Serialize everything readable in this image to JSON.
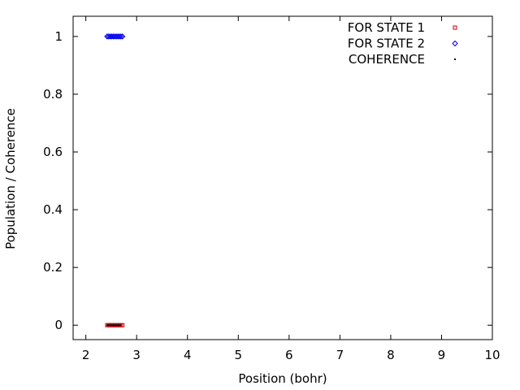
{
  "chart_data": {
    "type": "scatter",
    "xlabel": "Position (bohr)",
    "ylabel": "Population / Coherence",
    "xlim": [
      1.75,
      10
    ],
    "ylim": [
      -0.05,
      1.07
    ],
    "xticks": [
      2,
      3,
      4,
      5,
      6,
      7,
      8,
      9,
      10
    ],
    "yticks": [
      0,
      0.2,
      0.4,
      0.6,
      0.8,
      1
    ],
    "ytick_labels": [
      "0",
      "0.2",
      "0.4",
      "0.6",
      "0.8",
      "1"
    ],
    "legend_position": "top-right",
    "series": [
      {
        "name": "FOR STATE 1",
        "marker": "square",
        "color": "#cc0000",
        "points": [
          [
            2.42,
            0
          ],
          [
            2.45,
            0
          ],
          [
            2.48,
            0
          ],
          [
            2.51,
            0
          ],
          [
            2.54,
            0
          ],
          [
            2.57,
            0
          ],
          [
            2.6,
            0
          ],
          [
            2.63,
            0
          ],
          [
            2.66,
            0
          ],
          [
            2.69,
            0
          ],
          [
            2.72,
            0
          ]
        ]
      },
      {
        "name": "FOR STATE 2",
        "marker": "diamond",
        "color": "#0000ee",
        "points": [
          [
            2.42,
            1
          ],
          [
            2.45,
            1
          ],
          [
            2.48,
            1
          ],
          [
            2.51,
            1
          ],
          [
            2.54,
            1
          ],
          [
            2.57,
            1
          ],
          [
            2.6,
            1
          ],
          [
            2.63,
            1
          ],
          [
            2.66,
            1
          ],
          [
            2.69,
            1
          ],
          [
            2.72,
            1
          ]
        ]
      },
      {
        "name": "COHERENCE",
        "marker": "dot",
        "color": "#000000",
        "points": [
          [
            2.42,
            0
          ],
          [
            2.45,
            0
          ],
          [
            2.48,
            0
          ],
          [
            2.51,
            0
          ],
          [
            2.54,
            0
          ],
          [
            2.57,
            0
          ],
          [
            2.6,
            0
          ],
          [
            2.63,
            0
          ],
          [
            2.66,
            0
          ],
          [
            2.69,
            0
          ]
        ]
      }
    ]
  }
}
